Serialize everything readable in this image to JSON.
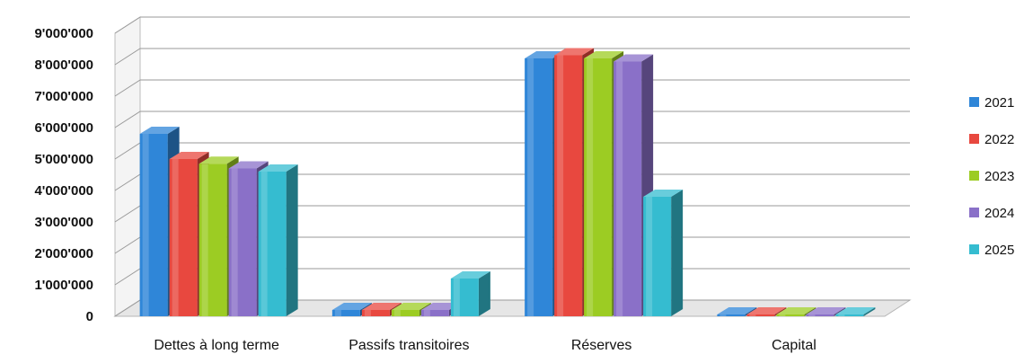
{
  "chart_data": {
    "type": "bar",
    "three_d": true,
    "categories": [
      "Dettes à long terme",
      "Passifs transitoires",
      "Réserves",
      "Capital"
    ],
    "series": [
      {
        "name": "2021",
        "color": "#2f86d8",
        "values": [
          5800000,
          200000,
          8200000,
          10000
        ]
      },
      {
        "name": "2022",
        "color": "#e8483f",
        "values": [
          5000000,
          200000,
          8300000,
          10000
        ]
      },
      {
        "name": "2023",
        "color": "#9ccc23",
        "values": [
          4850000,
          200000,
          8200000,
          10000
        ]
      },
      {
        "name": "2024",
        "color": "#8a70c8",
        "values": [
          4700000,
          200000,
          8100000,
          10000
        ]
      },
      {
        "name": "2025",
        "color": "#35bcd0",
        "values": [
          4600000,
          1200000,
          3800000,
          10000
        ]
      }
    ],
    "ylim": [
      0,
      9000000
    ],
    "yticks": [
      0,
      1000000,
      2000000,
      3000000,
      4000000,
      5000000,
      6000000,
      7000000,
      8000000,
      9000000
    ],
    "ytick_labels": [
      "0",
      "1'000'000",
      "2'000'000",
      "3'000'000",
      "4'000'000",
      "5'000'000",
      "6'000'000",
      "7'000'000",
      "8'000'000",
      "9'000'000"
    ],
    "grid": true,
    "legend_position": "right",
    "title": "",
    "xlabel": "",
    "ylabel": ""
  }
}
